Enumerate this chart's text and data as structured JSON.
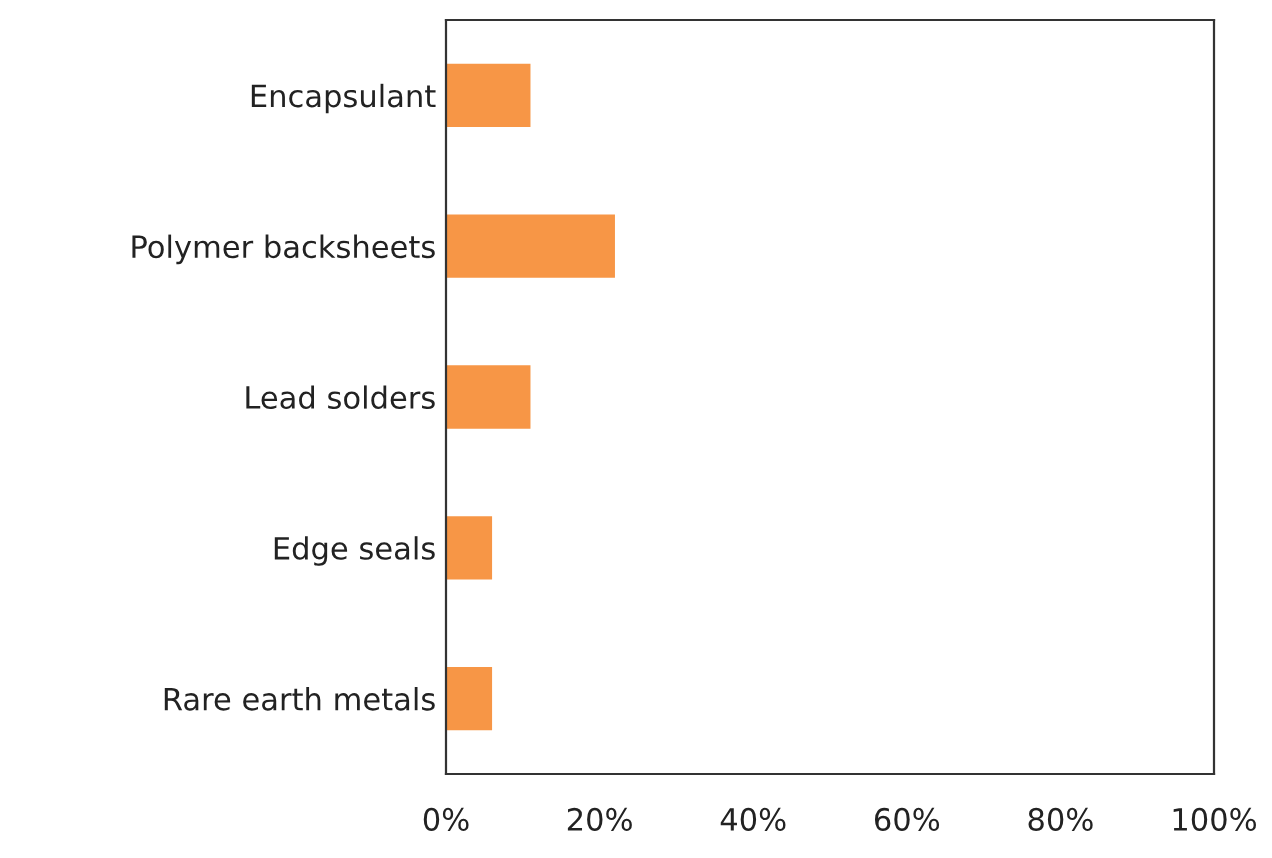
{
  "chart_data": {
    "type": "bar",
    "orientation": "horizontal",
    "categories": [
      "Encapsulant",
      "Polymer backsheets",
      "Lead solders",
      "Edge seals",
      "Rare earth metals"
    ],
    "values": [
      11,
      22,
      11,
      6,
      6
    ],
    "color": "#f79646",
    "xlim": [
      0,
      100
    ],
    "xticks": [
      {
        "value": 0,
        "label": "0%"
      },
      {
        "value": 20,
        "label": "20%"
      },
      {
        "value": 40,
        "label": "40%"
      },
      {
        "value": 60,
        "label": "60%"
      },
      {
        "value": 80,
        "label": "80%"
      },
      {
        "value": 100,
        "label": "100%"
      }
    ],
    "grid": false
  }
}
